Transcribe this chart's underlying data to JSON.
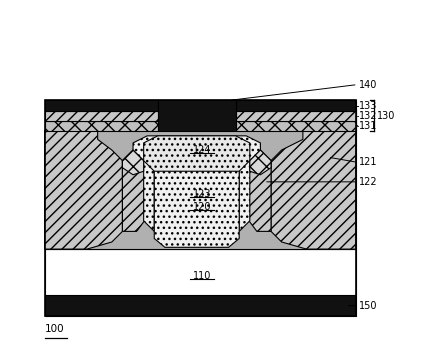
{
  "fig_width": 4.43,
  "fig_height": 3.46,
  "dpi": 100,
  "bg_color": "#ffffff",
  "col_black": "#111111",
  "col_white": "#ffffff",
  "col_gray_drift": "#b0b0b0",
  "col_gray_pwell": "#c8c8c8",
  "col_light_dot": "#e8e8e8",
  "col_lighter_dot": "#f0f0f0",
  "col_cross": "#d8d8d8",
  "col_mid_hatch": "#c0c0c0",
  "label_100": "100",
  "label_110": "110",
  "label_120": "120",
  "label_121": "121",
  "label_122": "122",
  "label_123": "123",
  "label_124": "124",
  "label_130": "130",
  "label_131": "131",
  "label_132": "132",
  "label_133": "133",
  "label_140": "140",
  "label_150": "150"
}
